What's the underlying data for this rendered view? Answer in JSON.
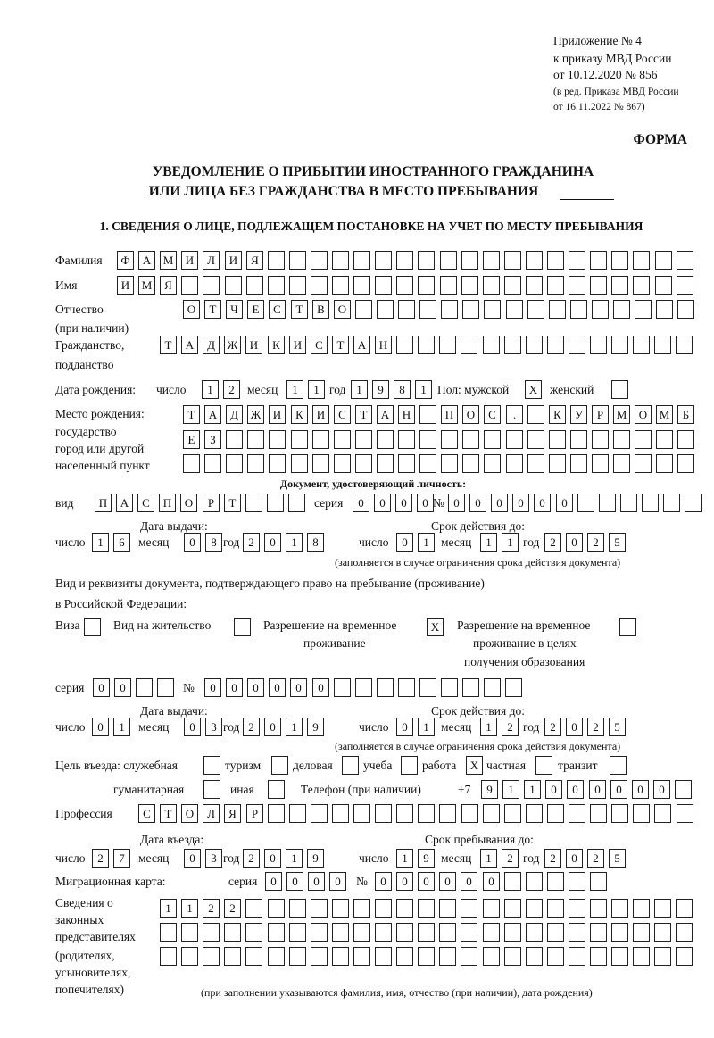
{
  "header": {
    "appendix": "Приложение № 4",
    "order": "к приказу МВД России",
    "order_date": "от 10.12.2020 № 856",
    "edition1": "(в ред. Приказа МВД России",
    "edition2": "от 16.11.2022 № 867)",
    "form_label": "ФОРМА",
    "title1": "УВЕДОМЛЕНИЕ О ПРИБЫТИИ ИНОСТРАННОГО ГРАЖДАНИНА",
    "title2": "ИЛИ ЛИЦА БЕЗ ГРАЖДАНСТВА В МЕСТО ПРЕБЫВАНИЯ",
    "section1": "1. СВЕДЕНИЯ О ЛИЦЕ, ПОДЛЕЖАЩЕМ ПОСТАНОВКЕ НА УЧЕТ ПО МЕСТУ ПРЕБЫВАНИЯ"
  },
  "labels": {
    "surname": "Фамилия",
    "name": "Имя",
    "patronymic": "Отчество",
    "patronymic_note": "(при наличии)",
    "citizenship": "Гражданство,",
    "citizenship2": "подданство",
    "birth_date": "Дата рождения:",
    "day": "число",
    "month": "месяц",
    "year": "год",
    "sex_male": "Пол: мужской",
    "sex_female": "женский",
    "birthplace": "Место рождения:",
    "birthplace_state": "государство",
    "birthplace_city": "город или другой",
    "birthplace_settlement": "населенный пункт",
    "id_doc": "Документ, удостоверяющий личность:",
    "doc_type": "вид",
    "series": "серия",
    "number": "№",
    "issue_date": "Дата выдачи:",
    "valid_until": "Срок действия до:",
    "validity_note": "(заполняется в случае ограничения срока действия документа)",
    "permit_doc1": "Вид и реквизиты документа, подтверждающего право на пребывание (проживание)",
    "permit_doc2": "в Российской Федерации:",
    "visa": "Виза",
    "residence_permit": "Вид на жительство",
    "trp1": "Разрешение на временное",
    "trp2": "проживание",
    "trp_edu1": "Разрешение на временное",
    "trp_edu2": "проживание в целях",
    "trp_edu3": "получения образования",
    "purpose": "Цель въезда: служебная",
    "tourism": "туризм",
    "business": "деловая",
    "study": "учеба",
    "work": "работа",
    "private": "частная",
    "transit": "транзит",
    "humanitarian": "гуманитарная",
    "other": "иная",
    "phone": "Телефон (при наличии)",
    "phone_prefix": "+7",
    "profession": "Профессия",
    "entry_date": "Дата въезда:",
    "stay_until": "Срок пребывания до:",
    "migration_card": "Миграционная карта:",
    "reps1": "Сведения о",
    "reps2": "законных",
    "reps3": "представителях",
    "reps4": "(родителях,",
    "reps5": "усыновителях,",
    "reps6": "попечителях)",
    "reps_note": "(при заполнении указываются фамилия, имя, отчество (при наличии), дата рождения)"
  },
  "fields": {
    "surname": "ФАМИЛИЯ",
    "name": "ИМЯ",
    "patronymic": "ОТЧЕСТВО",
    "citizenship": "ТАДЖИКИСТАН",
    "birth_day": "12",
    "birth_month": "11",
    "birth_year": "1981",
    "sex_male": "X",
    "sex_female": "",
    "birthplace1": "ТАДЖИКИСТАН ПОС. КУРМОМБ",
    "birthplace2": "ЕЗ",
    "birthplace3": "",
    "doc_type": "ПАСПОРТ",
    "doc_series": "0000",
    "doc_number": "000000",
    "doc_issue_day": "16",
    "doc_issue_month": "08",
    "doc_issue_year": "2018",
    "doc_valid_day": "01",
    "doc_valid_month": "11",
    "doc_valid_year": "2025",
    "visa": "",
    "residence_permit": "",
    "trp": "X",
    "trp_edu": "",
    "permit_series": "00",
    "permit_number": "000000",
    "permit_issue_day": "01",
    "permit_issue_month": "03",
    "permit_issue_year": "2019",
    "permit_valid_day": "01",
    "permit_valid_month": "12",
    "permit_valid_year": "2025",
    "purpose_official": "",
    "purpose_tourism": "",
    "purpose_business": "",
    "purpose_study": "",
    "purpose_work": "X",
    "purpose_private": "",
    "purpose_transit": "",
    "purpose_humanitarian": "",
    "purpose_other": "",
    "phone": "911000000",
    "profession": "СТОЛЯР",
    "entry_day": "27",
    "entry_month": "03",
    "entry_year": "2019",
    "stay_day": "19",
    "stay_month": "12",
    "stay_year": "2025",
    "migcard_series": "0000",
    "migcard_number": "000000",
    "reps1": "1122",
    "reps2": "",
    "reps3": ""
  }
}
